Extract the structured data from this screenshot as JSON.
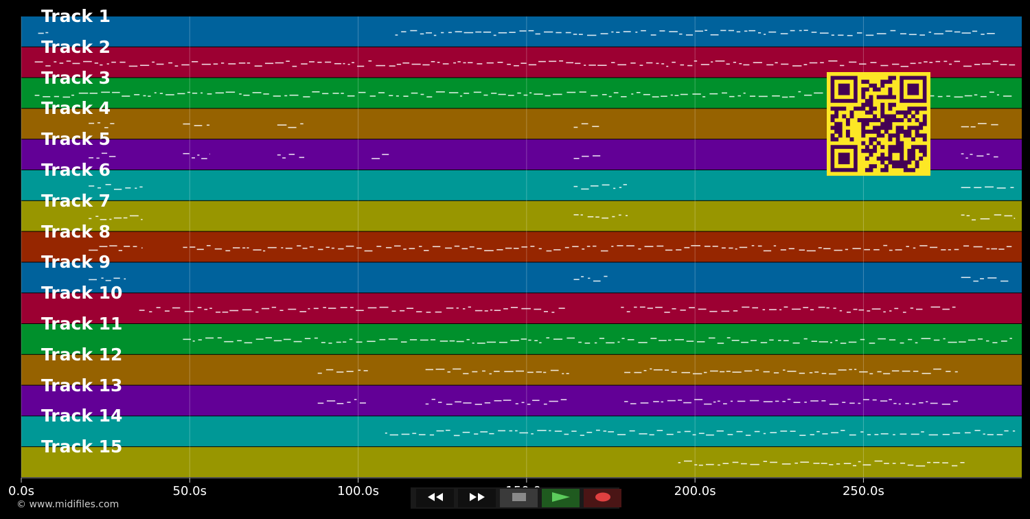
{
  "tracks": [
    {
      "label": "Track 1",
      "color": "#00629c"
    },
    {
      "label": "Track 2",
      "color": "#9c0032"
    },
    {
      "label": "Track 3",
      "color": "#00902c"
    },
    {
      "label": "Track 4",
      "color": "#966200"
    },
    {
      "label": "Track 5",
      "color": "#620096"
    },
    {
      "label": "Track 6",
      "color": "#009896"
    },
    {
      "label": "Track 7",
      "color": "#989600"
    },
    {
      "label": "Track 8",
      "color": "#962600"
    },
    {
      "label": "Track 9",
      "color": "#00629c"
    },
    {
      "label": "Track 10",
      "color": "#9c0032"
    },
    {
      "label": "Track 11",
      "color": "#00902c"
    },
    {
      "label": "Track 12",
      "color": "#966200"
    },
    {
      "label": "Track 13",
      "color": "#620096"
    },
    {
      "label": "Track 14",
      "color": "#009896"
    },
    {
      "label": "Track 15",
      "color": "#989600"
    }
  ],
  "timeline": {
    "start_s": 0,
    "end_s": 297,
    "ticks": [
      {
        "value": 0,
        "label": "0.0s"
      },
      {
        "value": 50,
        "label": "50.0s"
      },
      {
        "value": 100,
        "label": "100.0s"
      },
      {
        "value": 150,
        "label": "150.0s"
      },
      {
        "value": 200,
        "label": "200.0s"
      },
      {
        "value": 250,
        "label": "250.0s"
      }
    ]
  },
  "note_activity": [
    [
      [
        5,
        8
      ],
      [
        111,
        289
      ]
    ],
    [
      [
        4,
        295
      ]
    ],
    [
      [
        4,
        294
      ]
    ],
    [
      [
        20,
        28
      ],
      [
        48,
        56
      ],
      [
        76,
        84
      ],
      [
        164,
        172
      ],
      [
        279,
        290
      ]
    ],
    [
      [
        20,
        28
      ],
      [
        48,
        56
      ],
      [
        76,
        84
      ],
      [
        104,
        110
      ],
      [
        164,
        172
      ],
      [
        279,
        290
      ]
    ],
    [
      [
        20,
        36
      ],
      [
        164,
        180
      ],
      [
        279,
        295
      ]
    ],
    [
      [
        20,
        36
      ],
      [
        164,
        180
      ],
      [
        279,
        295
      ]
    ],
    [
      [
        20,
        36
      ],
      [
        48,
        294
      ]
    ],
    [
      [
        20,
        31
      ],
      [
        164,
        174
      ],
      [
        279,
        293
      ]
    ],
    [
      [
        35,
        162
      ],
      [
        178,
        268
      ],
      [
        270,
        278
      ]
    ],
    [
      [
        48,
        295
      ]
    ],
    [
      [
        88,
        103
      ],
      [
        120,
        163
      ],
      [
        179,
        278
      ]
    ],
    [
      [
        88,
        103
      ],
      [
        120,
        163
      ],
      [
        179,
        278
      ]
    ],
    [
      [
        108,
        295
      ]
    ],
    [
      [
        195,
        280
      ]
    ]
  ],
  "transport": [
    {
      "name": "rewind-button",
      "icon": "rewind-icon",
      "bg": "#101010",
      "fg": "#ffffff"
    },
    {
      "name": "fast-forward-button",
      "icon": "fast-forward-icon",
      "bg": "#101010",
      "fg": "#ffffff"
    },
    {
      "name": "stop-button",
      "icon": "stop-icon",
      "bg": "#3a3a3a",
      "fg": "#8a8a8a"
    },
    {
      "name": "play-button",
      "icon": "play-icon",
      "bg": "#1f5a1f",
      "fg": "#5ccc5c"
    },
    {
      "name": "record-button",
      "icon": "record-icon",
      "bg": "#4a1515",
      "fg": "#e04040"
    }
  ],
  "watermark": "© www.midifiles.com"
}
